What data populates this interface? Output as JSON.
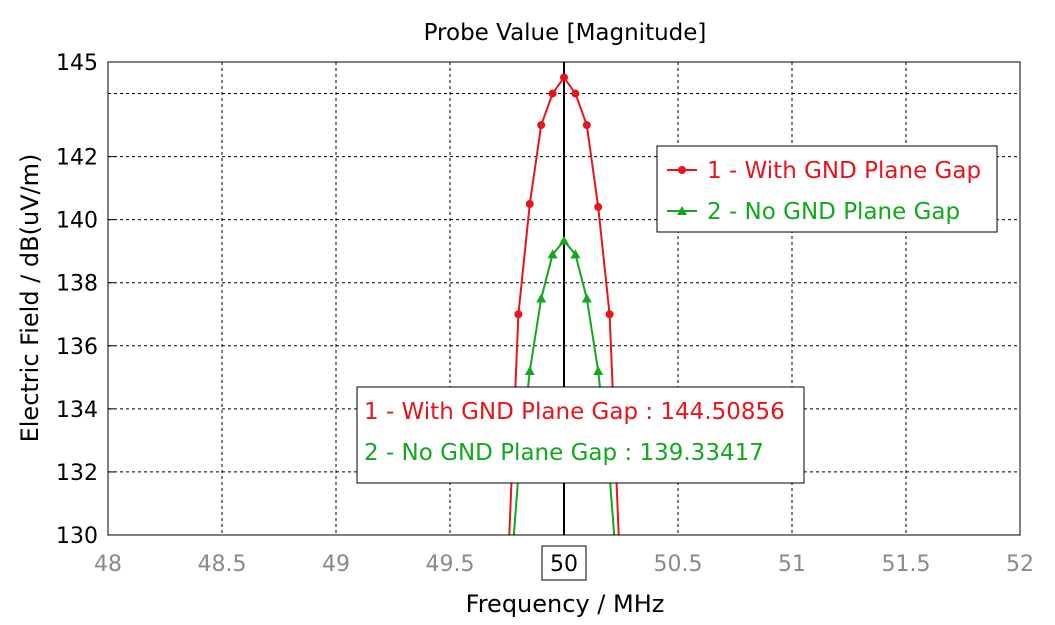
{
  "chart_data": {
    "type": "line",
    "title": "Probe Value [Magnitude]",
    "xlabel": "Frequency / MHz",
    "ylabel": "Electric Field / dB(uV/m)",
    "xlim": [
      48,
      52
    ],
    "ylim": [
      130,
      145
    ],
    "x_ticks": [
      48,
      48.5,
      49,
      49.5,
      50,
      50.5,
      51,
      51.5,
      52
    ],
    "y_ticks": [
      130,
      132,
      134,
      136,
      138,
      140,
      142,
      145
    ],
    "grid": true,
    "marker_x": 50,
    "legend_position": "top-right",
    "series": [
      {
        "name": "1 - With GND Plane Gap",
        "color": "#e8141c",
        "marker": "circle",
        "x": [
          49.76,
          49.8,
          49.85,
          49.9,
          49.95,
          50.0,
          50.05,
          50.1,
          50.15,
          50.2,
          50.24
        ],
        "y": [
          130.0,
          137.0,
          140.5,
          143.0,
          144.0,
          144.51,
          144.0,
          143.0,
          140.4,
          137.0,
          130.0
        ],
        "marker_indices": [
          1,
          2,
          3,
          4,
          5,
          6,
          7,
          8,
          9
        ]
      },
      {
        "name": "2 - No GND Plane Gap",
        "color": "#10a81c",
        "marker": "triangle",
        "x": [
          49.78,
          49.8,
          49.85,
          49.9,
          49.95,
          50.0,
          50.05,
          50.1,
          50.15,
          50.2,
          50.22
        ],
        "y": [
          130.0,
          131.9,
          135.2,
          137.5,
          138.9,
          139.33,
          138.9,
          137.5,
          135.2,
          131.9,
          130.0
        ],
        "marker_indices": [
          1,
          2,
          3,
          4,
          5,
          6,
          7,
          8,
          9
        ]
      }
    ],
    "readout": [
      {
        "text": "1 - With GND Plane Gap : 144.50856",
        "color": "#e8141c"
      },
      {
        "text": "2 - No GND Plane Gap : 139.33417",
        "color": "#10a81c"
      }
    ]
  }
}
